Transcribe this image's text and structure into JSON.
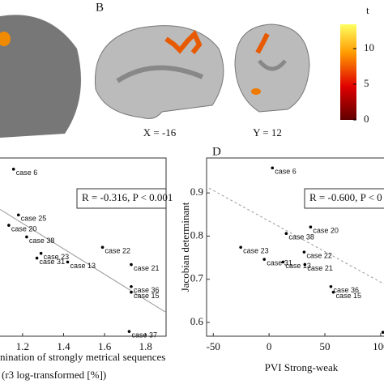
{
  "figure": {
    "panel_b": "B",
    "slice_labels": [
      "X = -16",
      "Y = 12"
    ],
    "colorbar": {
      "title": "t",
      "lim": [
        0,
        13.4
      ],
      "ticks": [
        0,
        5,
        10
      ]
    }
  },
  "chart_data": [
    {
      "type": "scatter",
      "annotation": "R = -0.316, P < 0.001",
      "x_label_lines": [
        "nination of strongly metrical sequences",
        "(r3 log-transformed [%])"
      ],
      "xlim": [
        1.09,
        1.9
      ],
      "ylim": [
        0.568,
        0.981
      ],
      "xticks": [
        1.2,
        1.4,
        1.6,
        1.8
      ],
      "x": [
        1.156,
        1.18,
        1.133,
        1.22,
        1.29,
        1.27,
        1.42,
        1.59,
        1.73,
        1.73,
        1.73,
        1.72
      ],
      "y": [
        0.955,
        0.849,
        0.825,
        0.798,
        0.76,
        0.749,
        0.74,
        0.774,
        0.734,
        0.683,
        0.67,
        0.579
      ],
      "labels": [
        "case 6",
        "case 25",
        "case 20",
        "case 38",
        "case 23",
        "case 31",
        "case 13",
        "case 22",
        "case 21",
        "case 36",
        "case 15",
        "case 37"
      ],
      "trend_line": {
        "x": [
          1.09,
          1.9
        ],
        "y": [
          0.862,
          0.623
        ]
      },
      "trend_style": "solid"
    },
    {
      "type": "scatter",
      "panel": "D",
      "annotation": "R = -0.600, P < 0",
      "x_label": "PVI Strong-weak",
      "y_label": "Jacobian determinant",
      "xlim": [
        -56,
        103
      ],
      "ylim": [
        0.568,
        0.981
      ],
      "xticks": [
        -50,
        0,
        50,
        100
      ],
      "yticks": [
        0.6,
        0.7,
        0.8,
        0.9
      ],
      "x": [
        3.0,
        37.2,
        15.4,
        31.4,
        -25.4,
        -4.3,
        12.5,
        32.1,
        55.4,
        57.6,
        102
      ],
      "y": [
        0.958,
        0.821,
        0.806,
        0.763,
        0.774,
        0.746,
        0.74,
        0.734,
        0.683,
        0.67,
        0.577
      ],
      "labels": [
        "case 6",
        "case 20",
        "case 38",
        "case 22",
        "case 23",
        "case 31",
        "case 13",
        "case 21",
        "case 36",
        "case 15",
        null
      ],
      "trend_line": {
        "x": [
          -53.8,
          103
        ],
        "y": [
          0.911,
          0.689
        ]
      },
      "trend_style": "dashed"
    }
  ]
}
